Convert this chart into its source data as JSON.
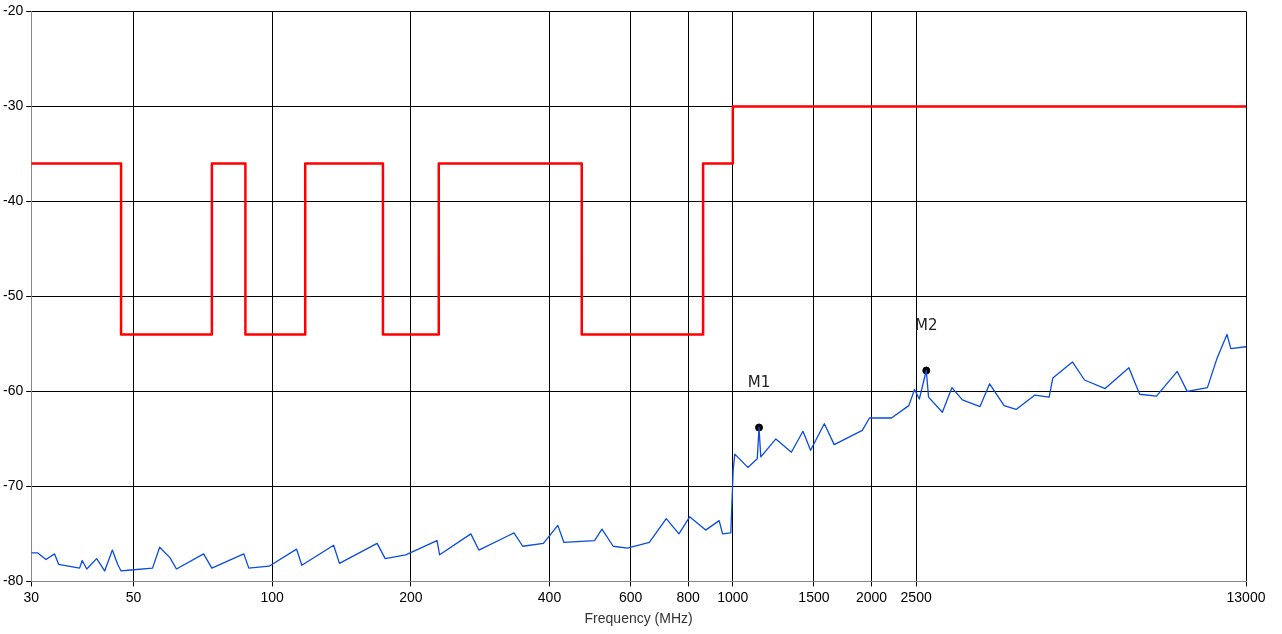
{
  "chart_data": {
    "type": "line",
    "xlabel": "Frequency (MHz)",
    "log": "x",
    "grid": true,
    "legend": false,
    "xlim": [
      30,
      13000
    ],
    "xticks": [
      30,
      50,
      100,
      200,
      400,
      600,
      800,
      1000,
      1500,
      2000,
      2500,
      13000
    ],
    "ylim": [
      -80,
      -20
    ],
    "yticks": [
      -80,
      -70,
      -60,
      -50,
      -40,
      -30,
      -20
    ],
    "series": [
      {
        "type": "step",
        "color": "#ff0000",
        "x": [
          30,
          47,
          74,
          87.5,
          118,
          174,
          230,
          470,
          862,
          1000,
          13000
        ],
        "values": [
          -36,
          -54,
          -36,
          -54,
          -36,
          -54,
          -36,
          -54,
          -36,
          -30,
          -30
        ]
      },
      {
        "type": "line",
        "color": "#0a4be0",
        "x": [
          30,
          31,
          32.3,
          33.7,
          34.4,
          38.2,
          38.7,
          39.6,
          41.6,
          43.3,
          45,
          46.2,
          47,
          49.4,
          55,
          57,
          60,
          62,
          71,
          74,
          86.8,
          89,
          98.5,
          113,
          116,
          136,
          140,
          169,
          176,
          195,
          228,
          231,
          270,
          281,
          335,
          350,
          388,
          417,
          430,
          501,
          520,
          550,
          590,
          659,
          717,
          764,
          806,
          873,
          934,
          950,
          990,
          1002,
          1010,
          1078,
          1130,
          1140,
          1150,
          1240,
          1340,
          1420,
          1475,
          1580,
          1660,
          1910,
          1980,
          2210,
          2410,
          2480,
          2540,
          2630,
          2660,
          2850,
          2990,
          3150,
          3440,
          3610,
          3880,
          4120,
          4520,
          4860,
          4950,
          5460,
          5800,
          6430,
          7240,
          7640,
          8310,
          9220,
          9690,
          10720,
          11250,
          11820,
          12050,
          13000
        ],
        "values": [
          -77,
          -77,
          -77.7,
          -77.1,
          -78.2,
          -78.6,
          -77.8,
          -78.7,
          -77.6,
          -78.9,
          -76.7,
          -78.2,
          -78.9,
          -78.8,
          -78.6,
          -76.4,
          -77.5,
          -78.7,
          -77.1,
          -78.6,
          -77.1,
          -78.6,
          -78.4,
          -76.6,
          -78.3,
          -76.2,
          -78.1,
          -76,
          -77.6,
          -77.2,
          -75.7,
          -77.2,
          -75,
          -76.7,
          -74.9,
          -76.3,
          -76,
          -74.1,
          -75.9,
          -75.7,
          -74.5,
          -76.3,
          -76.5,
          -75.9,
          -73.4,
          -75,
          -73.2,
          -74.6,
          -73.6,
          -75,
          -74.9,
          -68.2,
          -66.6,
          -68,
          -67.1,
          -63.8,
          -66.9,
          -65,
          -66.4,
          -64.2,
          -66.2,
          -63.4,
          -65.6,
          -64.1,
          -62.8,
          -62.8,
          -61.5,
          -59.8,
          -60.8,
          -57.8,
          -60.6,
          -62.2,
          -59.6,
          -60.9,
          -61.6,
          -59.2,
          -61.5,
          -61.9,
          -60.4,
          -60.6,
          -58.6,
          -56.9,
          -58.8,
          -59.7,
          -57.5,
          -60.3,
          -60.5,
          -57.9,
          -60,
          -59.6,
          -56.5,
          -54,
          -55.5,
          -55.3
        ]
      },
      {
        "type": "scatter",
        "color": "#000000",
        "marker": "circle",
        "x": [
          1140,
          2630
        ],
        "values": [
          -63.8,
          -57.8
        ]
      }
    ],
    "annotations": [
      {
        "text": "M1",
        "x": 1140,
        "y": -63.8
      },
      {
        "text": "M2",
        "x": 2630,
        "y": -57.8
      }
    ]
  }
}
